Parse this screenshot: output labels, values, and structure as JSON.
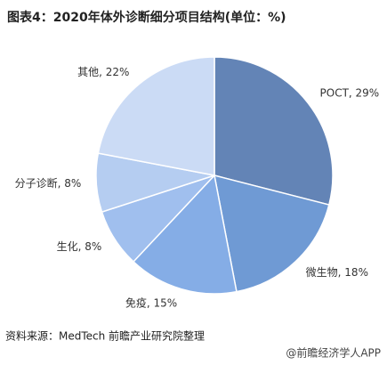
{
  "chart_data": {
    "type": "pie",
    "title": "图表4：2020年体外诊断细分项目结构(单位：%)",
    "values": [
      29,
      18,
      15,
      8,
      8,
      22
    ],
    "value_labels": [
      "POCT, 29%",
      "微生物, 18%",
      "免疫, 15%",
      "生化, 8%",
      "分子诊断, 8%",
      "其他, 22%"
    ],
    "colors": [
      "#6384b6",
      "#6f9ad4",
      "#85ade6",
      "#a0bfee",
      "#b5cdf1",
      "#cbdbf5"
    ],
    "source": "资料来源：MedTech 前瞻产业研究院整理",
    "watermark": "@前瞻经济学人APP"
  }
}
